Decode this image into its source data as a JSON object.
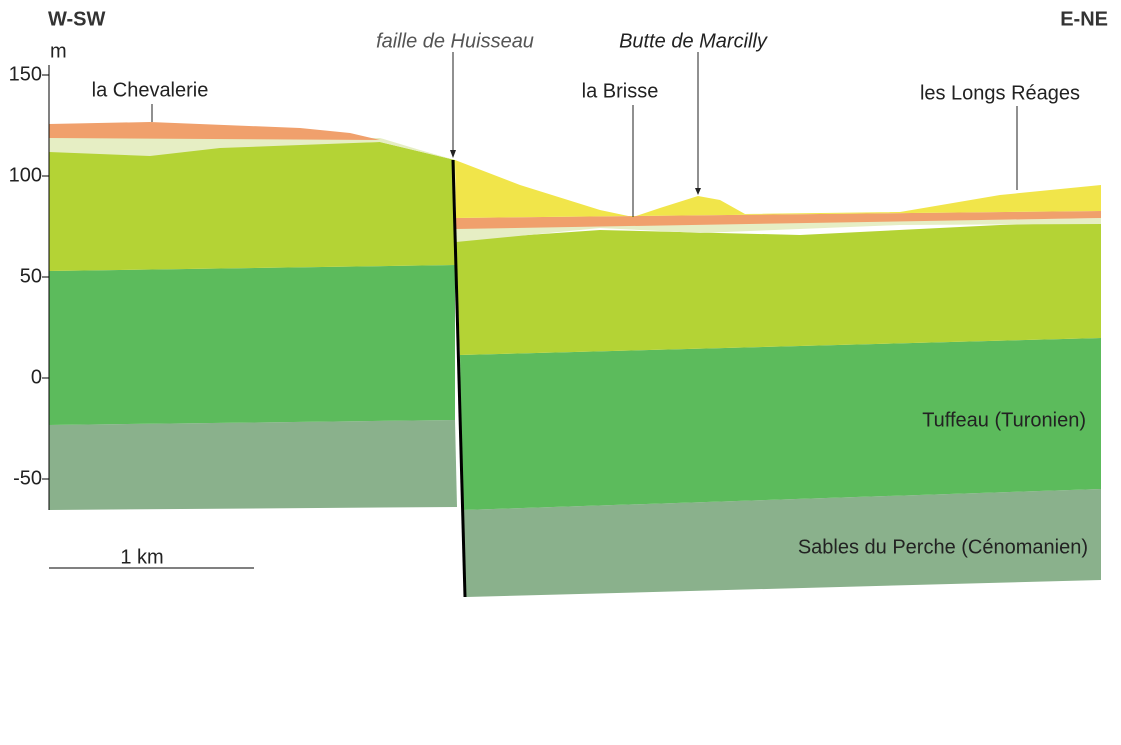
{
  "header": {
    "left_direction": "W-SW",
    "right_direction": "E-NE",
    "unit": "m"
  },
  "elevation_ticks": [
    150,
    100,
    50,
    0,
    -50
  ],
  "labels": {
    "fault": "faille de Huisseau",
    "butte": "Butte de Marcilly",
    "la_brisse": "la Brisse",
    "longs_reages": "les Longs Réages",
    "chevalerie": "la Chevalerie"
  },
  "layers": {
    "tuffeau": "Tuffeau (Turonien)",
    "sables": "Sables du Perche (Cénomanien)"
  },
  "scale_bar": "1 km"
}
